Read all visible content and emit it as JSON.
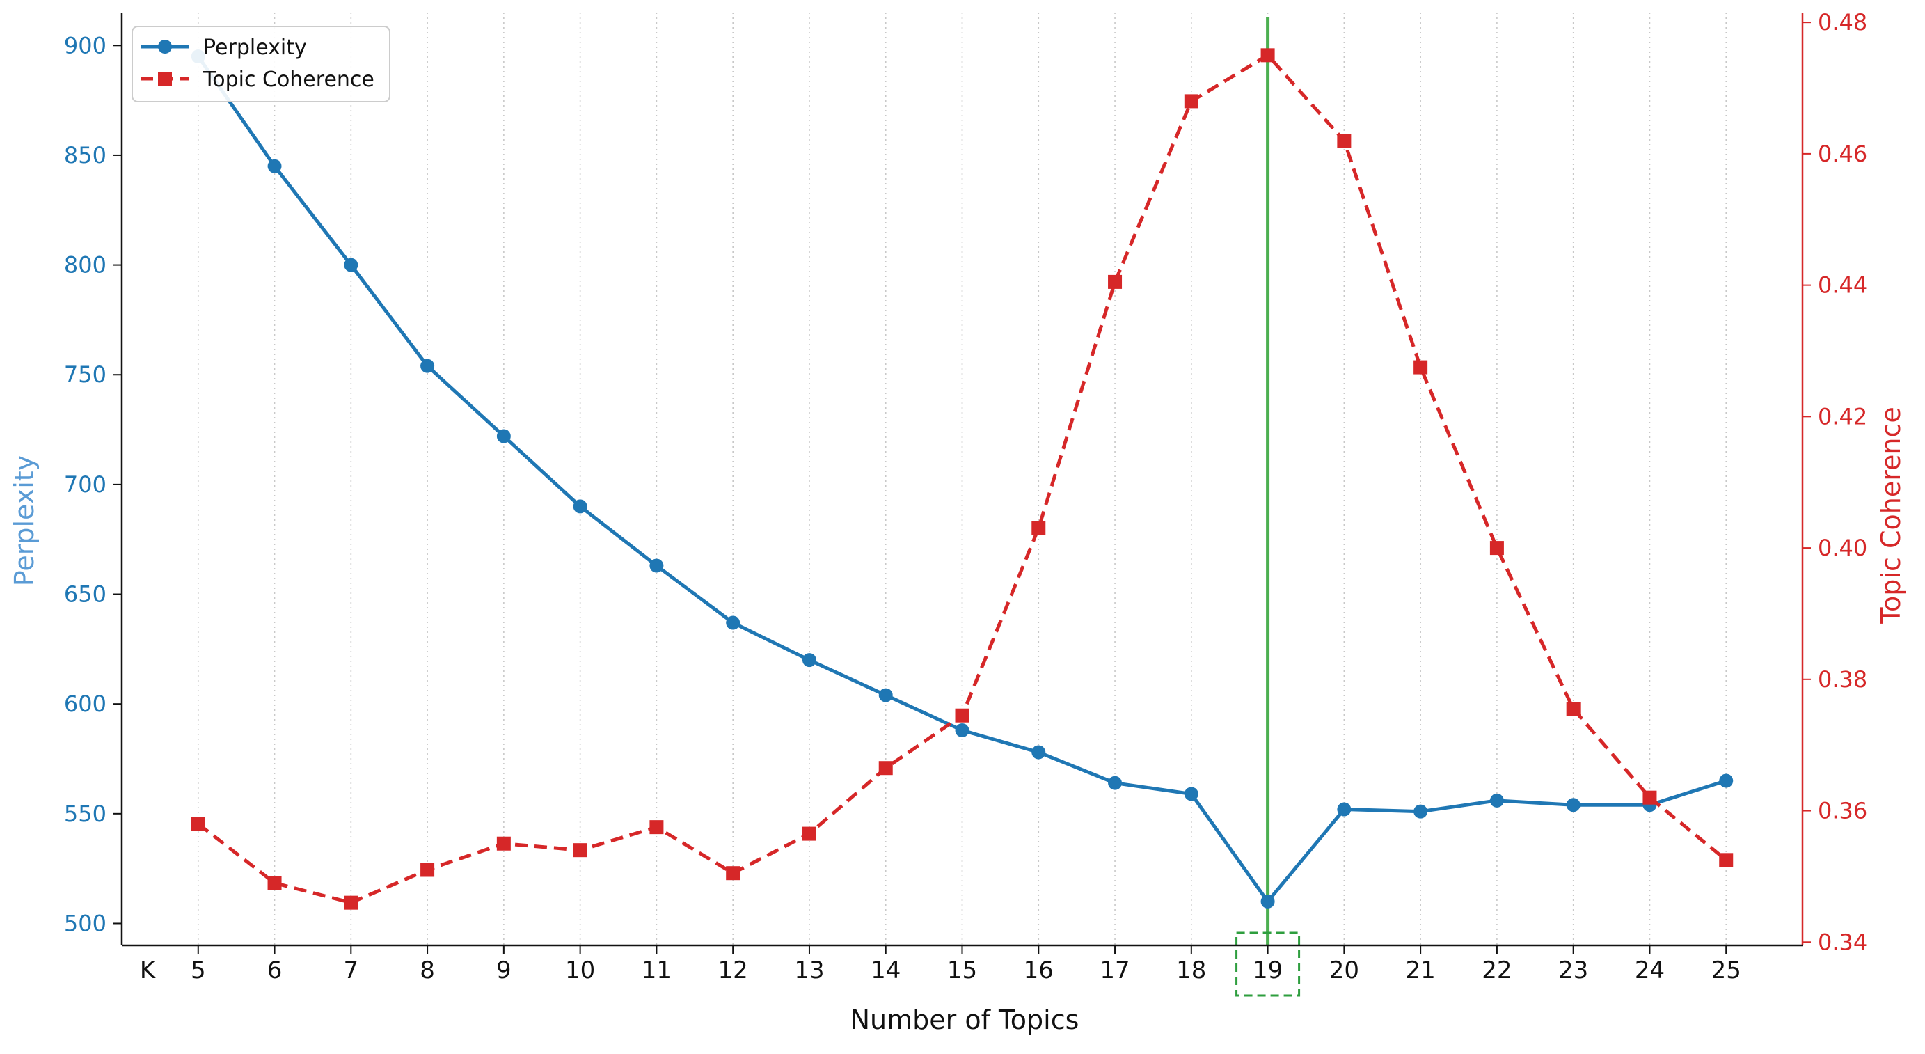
{
  "chart_data": {
    "type": "line",
    "xlabel": "Number of Topics",
    "x_axis_prefix": "K",
    "x": [
      5,
      6,
      7,
      8,
      9,
      10,
      11,
      12,
      13,
      14,
      15,
      16,
      17,
      18,
      19,
      20,
      21,
      22,
      23,
      24,
      25
    ],
    "xlim": [
      4,
      26
    ],
    "highlight_x": 19,
    "highlight_color": "#4caf50",
    "highlight_box_color": "#2e9e3e",
    "grid": "vertical dotted",
    "legend_position": "top-left",
    "left_axis": {
      "label": "Perplexity",
      "label_color": "#5a9bd5",
      "tick_color": "#1f77b4",
      "ylim": [
        490,
        915
      ],
      "ticks": [
        500,
        550,
        600,
        650,
        700,
        750,
        800,
        850,
        900
      ]
    },
    "right_axis": {
      "label": "Topic Coherence",
      "color": "#d62728",
      "ylim": [
        0.3395,
        0.4815
      ],
      "ticks": [
        "0.34",
        "0.36",
        "0.38",
        "0.40",
        "0.42",
        "0.44",
        "0.46",
        "0.48"
      ],
      "tick_values": [
        0.34,
        0.36,
        0.38,
        0.4,
        0.42,
        0.44,
        0.46,
        0.48
      ]
    },
    "series": [
      {
        "name": "Perplexity",
        "axis": "left",
        "color": "#1f77b4",
        "marker": "circle",
        "line_style": "solid",
        "values": [
          895,
          845,
          800,
          754,
          722,
          690,
          663,
          637,
          620,
          604,
          588,
          578,
          564,
          559,
          510,
          552,
          551,
          556,
          554,
          554,
          565
        ]
      },
      {
        "name": "Topic Coherence",
        "axis": "right",
        "color": "#d62728",
        "marker": "square",
        "line_style": "dashed",
        "values": [
          0.358,
          0.349,
          0.346,
          0.351,
          0.355,
          0.354,
          0.3575,
          0.3505,
          0.3565,
          0.3665,
          0.3745,
          0.403,
          0.4405,
          0.468,
          0.475,
          0.462,
          0.4275,
          0.4,
          0.3755,
          0.362,
          0.3525
        ]
      }
    ]
  }
}
